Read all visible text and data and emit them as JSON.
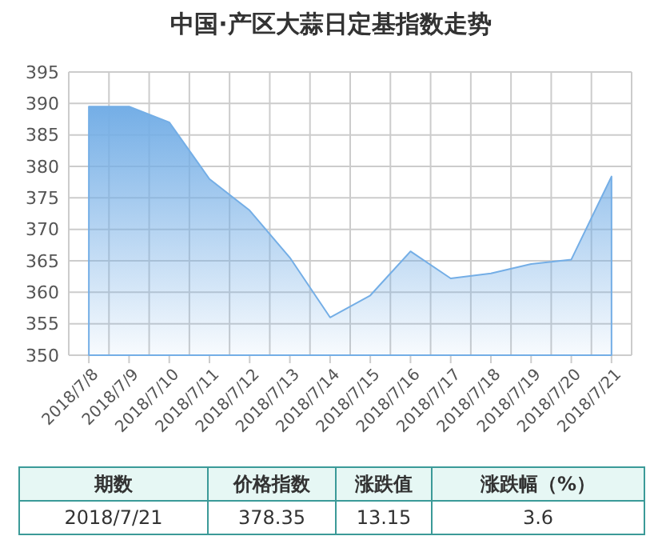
{
  "chart_data": {
    "type": "area",
    "title": "中国·产区大蒜日定基指数走势",
    "categories": [
      "2018/7/8",
      "2018/7/9",
      "2018/7/10",
      "2018/7/11",
      "2018/7/12",
      "2018/7/13",
      "2018/7/14",
      "2018/7/15",
      "2018/7/16",
      "2018/7/17",
      "2018/7/18",
      "2018/7/19",
      "2018/7/20",
      "2018/7/21"
    ],
    "series": [
      {
        "color": "#74aee6",
        "values": [
          389.5,
          389.5,
          387,
          378,
          373,
          365.5,
          356,
          359.5,
          366.5,
          362.2,
          363,
          364.5,
          365.2,
          378.4
        ]
      }
    ],
    "ylim": [
      350,
      395
    ],
    "yticks": [
      350,
      355,
      360,
      365,
      370,
      375,
      380,
      385,
      390,
      395
    ],
    "grid": true,
    "annotations": [
      "期数",
      "价格指数",
      "涨跌值",
      "涨跌幅（%）",
      "2018/7/21",
      "378.35",
      "13.15",
      "3.6"
    ]
  }
}
